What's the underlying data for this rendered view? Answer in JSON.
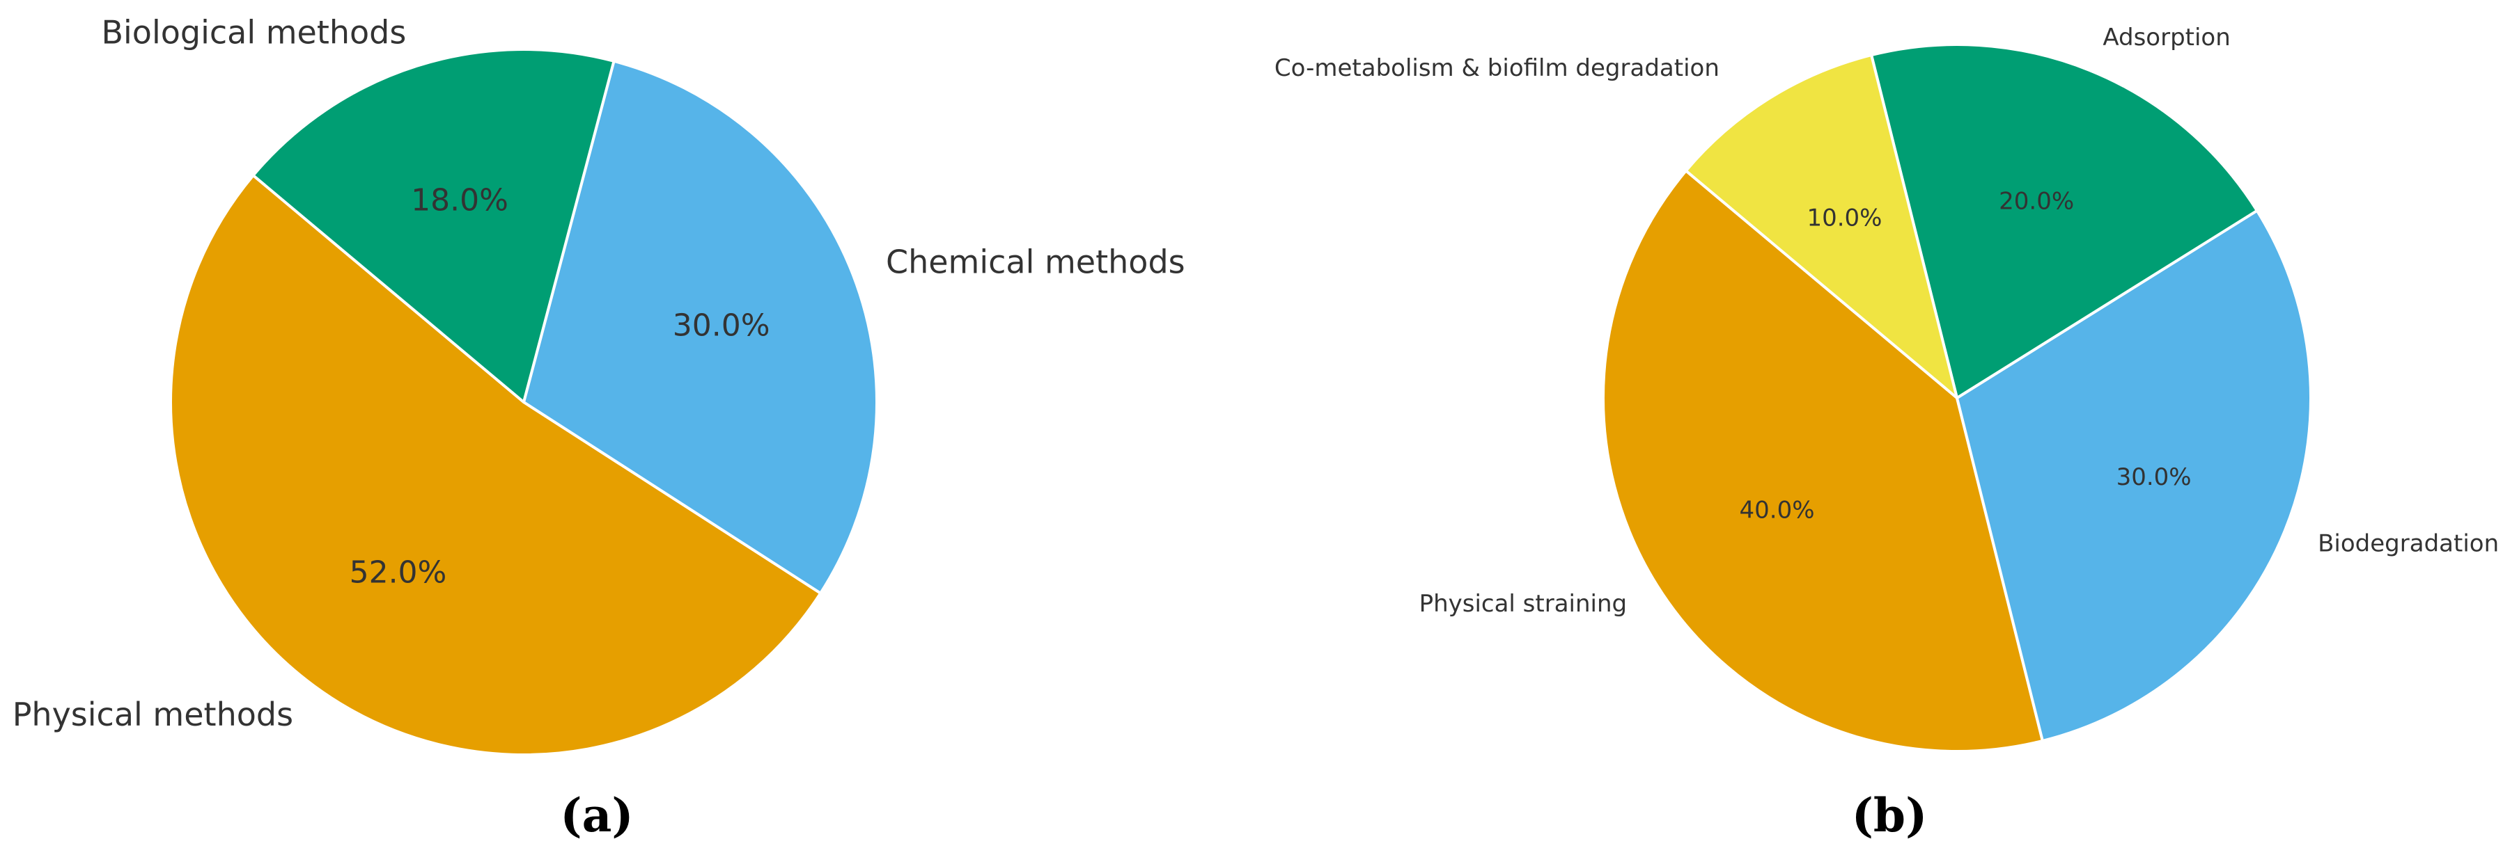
{
  "chart_data": [
    {
      "type": "pie",
      "panel_label": "(a)",
      "start_angle_deg": 140,
      "direction": "counterclockwise",
      "labels": [
        "Physical methods",
        "Chemical methods",
        "Biological methods"
      ],
      "values": [
        52.0,
        30.0,
        18.0
      ],
      "percent_labels": [
        "52.0%",
        "30.0%",
        "18.0%"
      ],
      "colors": [
        "#E69F00",
        "#56B4E9",
        "#009E73"
      ]
    },
    {
      "type": "pie",
      "panel_label": "(b)",
      "start_angle_deg": 140,
      "direction": "counterclockwise",
      "labels": [
        "Physical straining",
        "Biodegradation",
        "Adsorption",
        "Co-metabolism & biofilm degradation"
      ],
      "values": [
        40.0,
        30.0,
        20.0,
        10.0
      ],
      "percent_labels": [
        "40.0%",
        "30.0%",
        "20.0%",
        "10.0%"
      ],
      "colors": [
        "#E69F00",
        "#56B4E9",
        "#009E73",
        "#F0E442"
      ]
    }
  ]
}
